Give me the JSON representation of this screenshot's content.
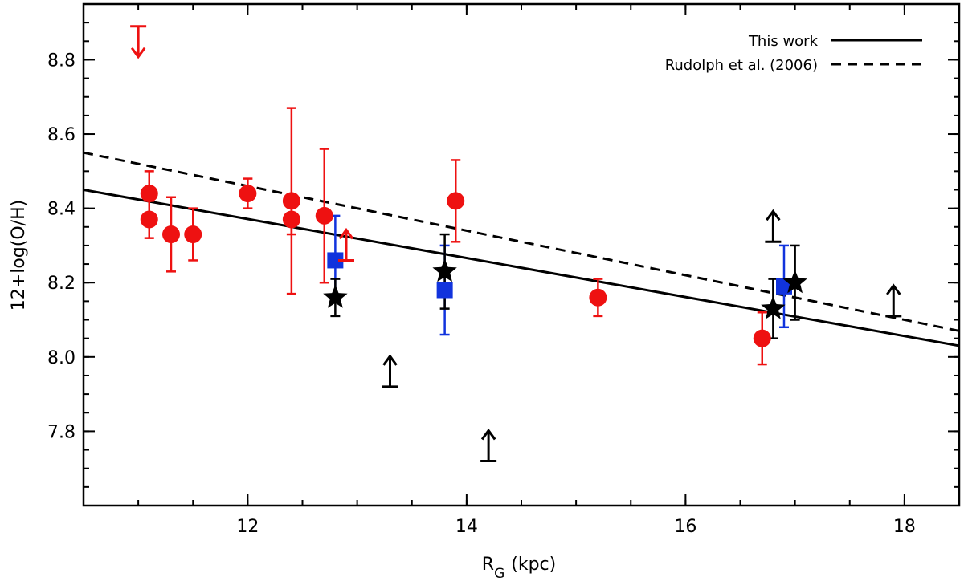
{
  "chart_data": {
    "type": "scatter",
    "title": "",
    "xlabel": "R",
    "xlabel_sub": "G",
    "xlabel_unit": "(kpc)",
    "ylabel": "12+log(O/H)",
    "xlim": [
      10.5,
      18.5
    ],
    "ylim": [
      7.6,
      8.95
    ],
    "x_ticks": [
      "12",
      "14",
      "16",
      "18"
    ],
    "y_ticks": [
      "7.8",
      "8.0",
      "8.2",
      "8.4",
      "8.6",
      "8.8"
    ],
    "colors": {
      "red": "#ee1111",
      "blue": "#1133dd",
      "black": "#000000"
    },
    "legend_position": "top-right",
    "lines": [
      {
        "name": "This work",
        "style": "solid",
        "x": [
          10.5,
          18.5
        ],
        "y": [
          8.45,
          8.03
        ]
      },
      {
        "name": "Rudolph et al. (2006)",
        "style": "dashed",
        "x": [
          10.5,
          18.5
        ],
        "y": [
          8.55,
          8.07
        ]
      }
    ],
    "series": [
      {
        "name": "red-circles",
        "marker": "circle",
        "color": "red",
        "points": [
          {
            "x": 11.1,
            "y": 8.44,
            "lo": 8.37,
            "hi": 8.5
          },
          {
            "x": 11.1,
            "y": 8.37,
            "lo": 8.32,
            "hi": 8.42
          },
          {
            "x": 11.3,
            "y": 8.33,
            "lo": 8.23,
            "hi": 8.43
          },
          {
            "x": 11.5,
            "y": 8.33,
            "lo": 8.26,
            "hi": 8.4
          },
          {
            "x": 12.0,
            "y": 8.44,
            "lo": 8.4,
            "hi": 8.48
          },
          {
            "x": 12.4,
            "y": 8.42,
            "lo": 8.17,
            "hi": 8.67
          },
          {
            "x": 12.4,
            "y": 8.37,
            "lo": 8.33,
            "hi": 8.41
          },
          {
            "x": 12.7,
            "y": 8.38,
            "lo": 8.2,
            "hi": 8.56
          },
          {
            "x": 13.9,
            "y": 8.42,
            "lo": 8.31,
            "hi": 8.53
          },
          {
            "x": 15.2,
            "y": 8.16,
            "lo": 8.11,
            "hi": 8.21
          },
          {
            "x": 16.7,
            "y": 8.05,
            "lo": 7.98,
            "hi": 8.12
          }
        ]
      },
      {
        "name": "blue-squares",
        "marker": "square",
        "color": "blue",
        "points": [
          {
            "x": 12.8,
            "y": 8.26,
            "lo": 8.16,
            "hi": 8.38
          },
          {
            "x": 13.8,
            "y": 8.18,
            "lo": 8.06,
            "hi": 8.3
          },
          {
            "x": 16.9,
            "y": 8.19,
            "lo": 8.08,
            "hi": 8.3
          }
        ]
      },
      {
        "name": "black-stars",
        "marker": "star",
        "color": "black",
        "points": [
          {
            "x": 12.8,
            "y": 8.16,
            "lo": 8.11,
            "hi": 8.21
          },
          {
            "x": 13.8,
            "y": 8.23,
            "lo": 8.13,
            "hi": 8.33
          },
          {
            "x": 16.8,
            "y": 8.13,
            "lo": 8.05,
            "hi": 8.21
          },
          {
            "x": 17.0,
            "y": 8.2,
            "lo": 8.1,
            "hi": 8.3
          }
        ]
      }
    ],
    "limits": [
      {
        "x": 11.0,
        "y": 8.89,
        "direction": "upper",
        "color": "red"
      },
      {
        "x": 12.9,
        "y": 8.26,
        "direction": "lower",
        "color": "red"
      },
      {
        "x": 13.3,
        "y": 7.92,
        "direction": "lower",
        "color": "black"
      },
      {
        "x": 14.2,
        "y": 7.72,
        "direction": "lower",
        "color": "black"
      },
      {
        "x": 16.8,
        "y": 8.31,
        "direction": "lower",
        "color": "black"
      },
      {
        "x": 17.9,
        "y": 8.11,
        "direction": "lower",
        "color": "black"
      }
    ]
  }
}
